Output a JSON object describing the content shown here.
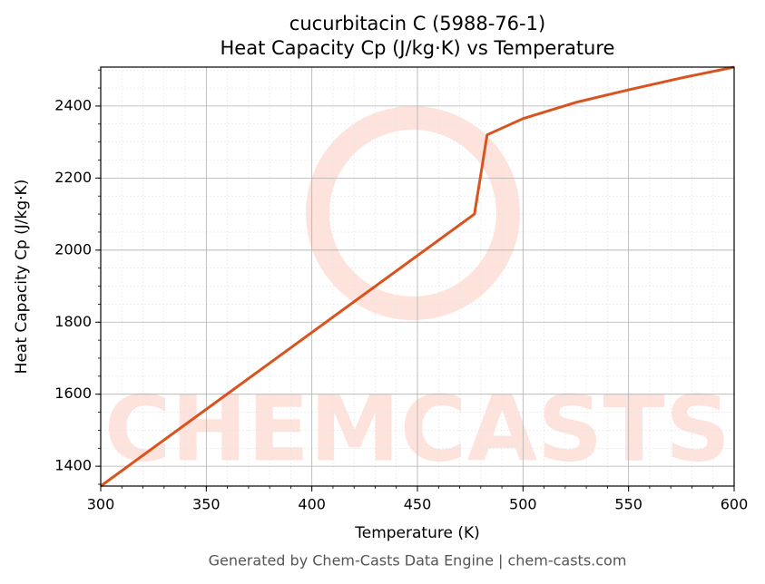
{
  "chart_data": {
    "type": "line",
    "title": "cucurbitacin C (5988-76-1)",
    "subtitle": "Heat Capacity Cp (J/kg·K) vs Temperature",
    "x_label": "Temperature (K)",
    "y_label": "Heat Capacity Cp (J/kg·K)",
    "footer": "Generated by Chem-Casts Data Engine | chem-casts.com",
    "watermark": "CHEMCASTS",
    "x": [
      300,
      477,
      483,
      500,
      525,
      550,
      575,
      600
    ],
    "series": [
      {
        "name": "Heat Capacity Cp",
        "color": "#d9531e",
        "values": [
          1345,
          2100,
          2320,
          2365,
          2410,
          2445,
          2478,
          2508
        ]
      }
    ],
    "xlim": [
      300,
      600
    ],
    "ylim": [
      1345,
      2508
    ],
    "xticks": [
      300,
      350,
      400,
      450,
      500,
      550,
      600
    ],
    "yticks": [
      1400,
      1600,
      1800,
      2000,
      2200,
      2400
    ],
    "grid": true,
    "minor_grid": true
  }
}
